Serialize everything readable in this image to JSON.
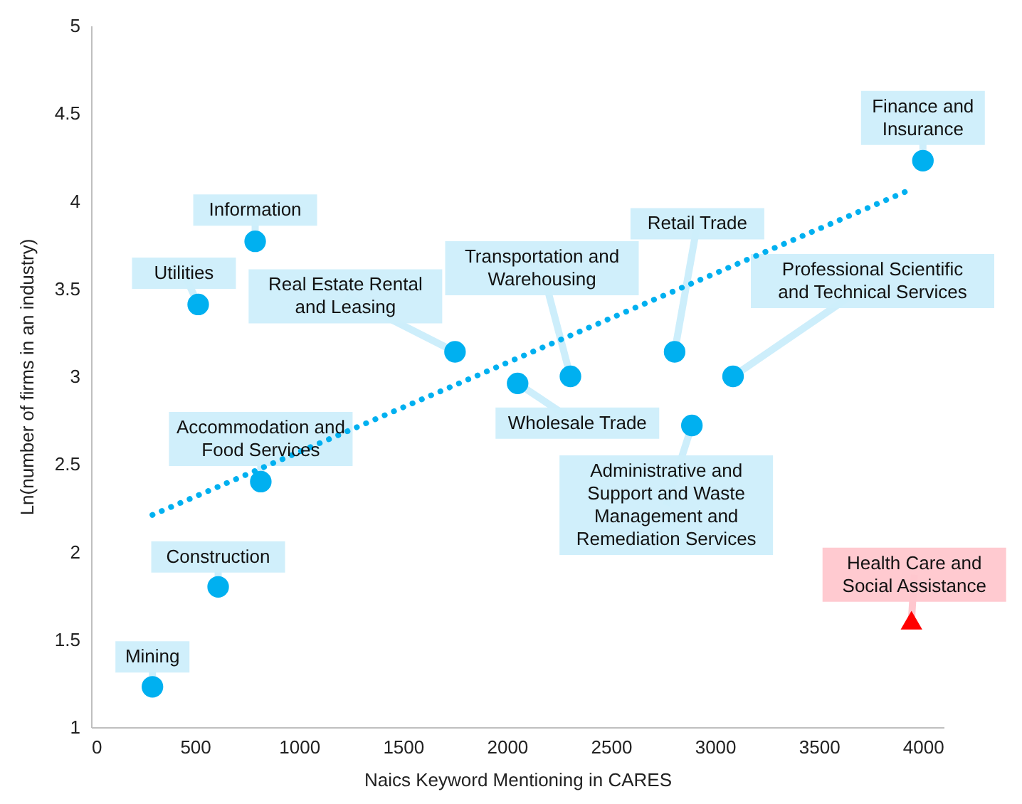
{
  "chart_data": {
    "type": "scatter",
    "xlabel": "Naics Keyword Mentioning in CARES",
    "ylabel": "Ln(number of firms in an industry)",
    "xlim": [
      0,
      4100
    ],
    "xticks": [
      0,
      500,
      1000,
      1500,
      2000,
      2500,
      3000,
      3500,
      4000
    ],
    "ylim": [
      1,
      5
    ],
    "yticks": [
      1,
      1.5,
      2,
      2.5,
      3,
      3.5,
      4,
      4.5,
      5
    ],
    "grid": false,
    "series": [
      {
        "color": "#00b0f0",
        "marker": "circle",
        "x": [
          295,
          611,
          816,
          515,
          789,
          1750,
          2051,
          2305,
          2806,
          3087,
          2889,
          4000
        ],
        "values": [
          1.23,
          1.8,
          2.4,
          3.41,
          3.77,
          3.14,
          2.96,
          3.0,
          3.14,
          3.0,
          2.72,
          4.23
        ]
      },
      {
        "color": "#ff0000",
        "marker": "triangle",
        "x": [
          3945
        ],
        "values": [
          1.61
        ]
      },
      {
        "type": "line",
        "color": "#00b0f0",
        "line_style": "dotted",
        "marker": "none",
        "x": [
          295,
          3950
        ],
        "values": [
          2.21,
          4.07
        ]
      }
    ],
    "annotations": [
      {
        "text": "Mining",
        "x": 295,
        "y": 1.23
      },
      {
        "text": "Construction",
        "x": 611,
        "y": 1.8
      },
      {
        "text": "Accommodation and Food Services",
        "x": 816,
        "y": 2.4
      },
      {
        "text": "Utilities",
        "x": 515,
        "y": 3.41
      },
      {
        "text": "Information",
        "x": 789,
        "y": 3.77
      },
      {
        "text": "Real Estate Rental and Leasing",
        "x": 1750,
        "y": 3.14
      },
      {
        "text": "Wholesale Trade",
        "x": 2051,
        "y": 2.96
      },
      {
        "text": "Transportation and Warehousing",
        "x": 2305,
        "y": 3.0
      },
      {
        "text": "Retail Trade",
        "x": 2806,
        "y": 3.14
      },
      {
        "text": "Professional Scientific and Technical Services",
        "x": 3087,
        "y": 3.0
      },
      {
        "text": "Administrative and Support and Waste Management and Remediation Services",
        "x": 2889,
        "y": 2.72
      },
      {
        "text": "Finance and Insurance",
        "x": 4000,
        "y": 4.23
      },
      {
        "text": "Health Care and Social Assistance",
        "x": 3945,
        "y": 1.61
      }
    ]
  }
}
